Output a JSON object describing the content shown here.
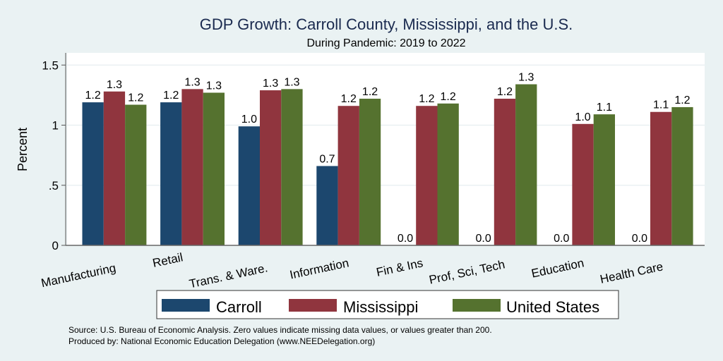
{
  "chart_data": {
    "type": "bar",
    "title": "GDP Growth: Carroll County, Mississippi, and the U.S.",
    "subtitle": "During Pandemic: 2019 to 2022",
    "xlabel": "",
    "ylabel": "Percent",
    "ylim": [
      0,
      1.6
    ],
    "yticks": [
      {
        "value": 0,
        "label": "0"
      },
      {
        "value": 0.5,
        "label": ".5"
      },
      {
        "value": 1,
        "label": "1"
      },
      {
        "value": 1.5,
        "label": "1.5"
      }
    ],
    "grid": true,
    "legend_position": "bottom",
    "categories": [
      "Manufacturing",
      "Retail",
      "Trans. & Ware.",
      "Information",
      "Fin & Ins",
      "Prof, Sci, Tech",
      "Education",
      "Health Care"
    ],
    "series": [
      {
        "name": "Carroll",
        "color": "#1c476e",
        "values": [
          1.19,
          1.19,
          0.99,
          0.66,
          0,
          0,
          0,
          0
        ],
        "labels": [
          "1.2",
          "1.2",
          "1.0",
          "0.7",
          "0.0",
          "0.0",
          "0.0",
          "0.0"
        ]
      },
      {
        "name": "Mississippi",
        "color": "#90353e",
        "values": [
          1.28,
          1.3,
          1.29,
          1.16,
          1.16,
          1.22,
          1.01,
          1.11
        ],
        "labels": [
          "1.3",
          "1.3",
          "1.3",
          "1.2",
          "1.2",
          "1.2",
          "1.0",
          "1.1"
        ]
      },
      {
        "name": "United States",
        "color": "#55722f",
        "values": [
          1.17,
          1.27,
          1.3,
          1.22,
          1.18,
          1.34,
          1.09,
          1.15
        ],
        "labels": [
          "1.2",
          "1.3",
          "1.3",
          "1.2",
          "1.2",
          "1.3",
          "1.1",
          "1.2"
        ]
      }
    ],
    "notes": [
      "Source: U.S. Bureau of Economic Analysis. Zero values indicate missing data values, or values greater than 200.",
      "Produced by: National Economic Education Delegation (www.NEEDelegation.org)"
    ]
  }
}
